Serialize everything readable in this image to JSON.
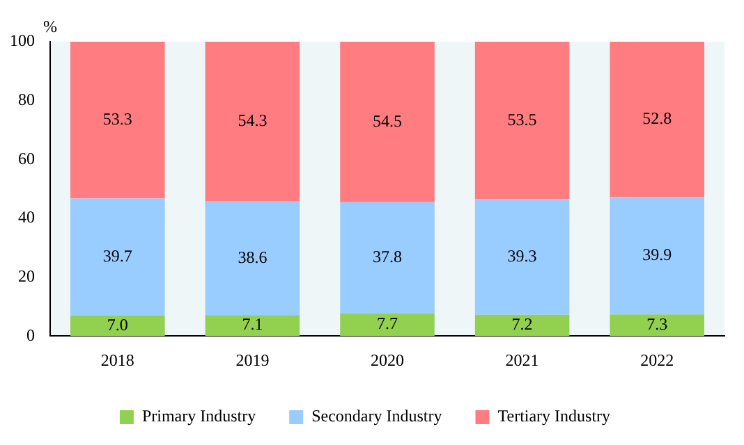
{
  "chart_data": {
    "type": "bar",
    "stacked": true,
    "ylabel": "%",
    "categories": [
      "2018",
      "2019",
      "2020",
      "2021",
      "2022"
    ],
    "series": [
      {
        "name": "Primary Industry",
        "color": "#92d050",
        "values": [
          7.0,
          7.1,
          7.7,
          7.2,
          7.3
        ],
        "value_labels": [
          "7.0",
          "7.1",
          "7.7",
          "7.2",
          "7.3"
        ]
      },
      {
        "name": "Secondary Industry",
        "color": "#99ccff",
        "values": [
          39.7,
          38.6,
          37.8,
          39.3,
          39.9
        ],
        "value_labels": [
          "39.7",
          "38.6",
          "37.8",
          "39.3",
          "39.9"
        ]
      },
      {
        "name": "Tertiary Industry",
        "color": "#ff7c80",
        "values": [
          53.3,
          54.3,
          54.5,
          53.5,
          52.8
        ],
        "value_labels": [
          "53.3",
          "54.3",
          "54.5",
          "53.5",
          "52.8"
        ]
      }
    ],
    "ylim": [
      0,
      100
    ],
    "yticks": [
      0,
      20,
      40,
      60,
      80,
      100
    ],
    "grid": false,
    "legend": "bottom"
  }
}
